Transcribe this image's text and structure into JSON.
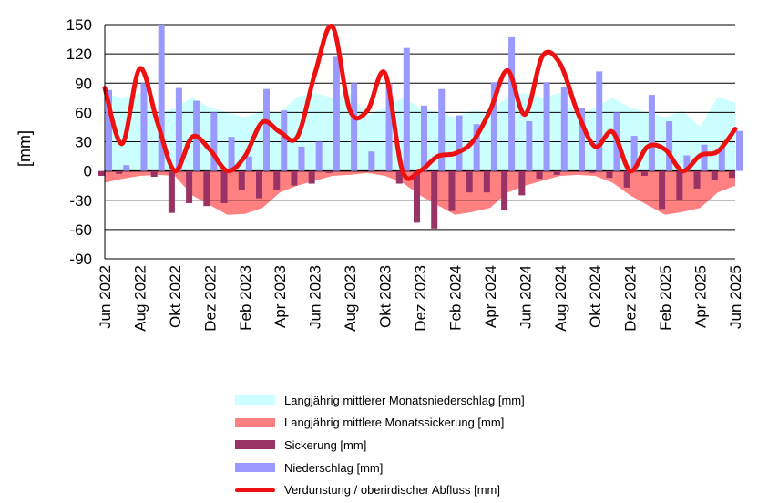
{
  "chart_data": {
    "type": "bar",
    "title": "",
    "xlabel": "",
    "ylabel": "[mm]",
    "ylim": [
      -90,
      150
    ],
    "yticks": [
      150,
      120,
      90,
      60,
      30,
      0,
      -30,
      -60,
      -90
    ],
    "grid": true,
    "categories": [
      "Jun 2022",
      "Jul 2022",
      "Aug 2022",
      "Sep 2022",
      "Okt 2022",
      "Nov 2022",
      "Dez 2022",
      "Jan 2023",
      "Feb 2023",
      "Mrz 2023",
      "Apr 2023",
      "Mai 2023",
      "Jun 2023",
      "Jul 2023",
      "Aug 2023",
      "Sep 2023",
      "Okt 2023",
      "Nov 2023",
      "Dez 2023",
      "Jan 2024",
      "Feb 2024",
      "Mrz 2024",
      "Apr 2024",
      "Mai 2024",
      "Jun 2024",
      "Jul 2024",
      "Aug 2024",
      "Sep 2024",
      "Okt 2024",
      "Nov 2024",
      "Dez 2024",
      "Jan 2025",
      "Feb 2025",
      "Mrz 2025",
      "Apr 2025",
      "Mai 2025",
      "Jun 2025"
    ],
    "xtick_labels": [
      "Jun 2022",
      "Aug 2022",
      "Okt 2022",
      "Dez 2022",
      "Feb 2023",
      "Apr 2023",
      "Jun 2023",
      "Aug 2023",
      "Okt 2023",
      "Dez 2023",
      "Feb 2024",
      "Apr 2024",
      "Jun 2024",
      "Aug 2024",
      "Okt 2024",
      "Dez 2024",
      "Feb 2025",
      "Apr 2025",
      "Jun 2025"
    ],
    "series": [
      {
        "name": "Langjährig mittlerer Monatsniederschlag [mm]",
        "kind": "area",
        "color": "#ccffff",
        "values": [
          80,
          75,
          80,
          57,
          65,
          75,
          65,
          60,
          55,
          62,
          60,
          76,
          80,
          75,
          80,
          57,
          65,
          75,
          65,
          60,
          55,
          62,
          60,
          76,
          80,
          75,
          80,
          57,
          65,
          75,
          65,
          60,
          55,
          62,
          45,
          76,
          70
        ]
      },
      {
        "name": "Langjährig mittlere Monatssickerung [mm]",
        "kind": "area",
        "color": "#ff8080",
        "values": [
          -12,
          -8,
          -5,
          -4,
          -5,
          -25,
          -35,
          -45,
          -44,
          -38,
          -22,
          -15,
          -10,
          -5,
          -4,
          -2,
          -5,
          -12,
          -25,
          -35,
          -45,
          -42,
          -38,
          -22,
          -15,
          -10,
          -5,
          -4,
          -5,
          -12,
          -25,
          -35,
          -45,
          -42,
          -38,
          -22,
          -15
        ]
      },
      {
        "name": "Sickerung [mm]",
        "kind": "bar",
        "color": "#993366",
        "values": [
          -5,
          -3,
          0,
          -6,
          -43,
          -33,
          -36,
          -33,
          -20,
          -28,
          -19,
          -15,
          -13,
          -2,
          0,
          0,
          -1,
          -13,
          -53,
          -59,
          -41,
          -22,
          -22,
          -40,
          -25,
          -8,
          -4,
          0,
          -2,
          -7,
          -17,
          -5,
          -39,
          -30,
          -18,
          -9,
          -7
        ]
      },
      {
        "name": "Niederschlag [mm]",
        "kind": "bar",
        "color": "#9999ff",
        "values": [
          83,
          6,
          90,
          150,
          85,
          72,
          60,
          35,
          15,
          84,
          62,
          25,
          30,
          117,
          90,
          20,
          90,
          126,
          67,
          84,
          57,
          48,
          91,
          137,
          51,
          91,
          86,
          65,
          102,
          60,
          36,
          78,
          51,
          16,
          27,
          24,
          41
        ]
      },
      {
        "name": "Verdunstung / oberirdischer Abfluss [mm]",
        "kind": "line",
        "color": "#ee1111",
        "values": [
          85,
          28,
          105,
          50,
          0,
          35,
          22,
          0,
          15,
          50,
          40,
          35,
          100,
          148,
          62,
          62,
          100,
          0,
          0,
          15,
          18,
          30,
          62,
          103,
          58,
          118,
          110,
          60,
          25,
          40,
          0,
          25,
          22,
          0,
          16,
          20,
          43
        ]
      }
    ],
    "legend_position": "bottom"
  },
  "legend": {
    "items": [
      {
        "label": "Langjährig mittlerer Monatsniederschlag [mm]",
        "color": "#ccffff",
        "kind": "area"
      },
      {
        "label": "Langjährig mittlere Monatssickerung [mm]",
        "color": "#ff8080",
        "kind": "area"
      },
      {
        "label": "Sickerung [mm]",
        "color": "#993366",
        "kind": "bar"
      },
      {
        "label": "Niederschlag [mm]",
        "color": "#9999ff",
        "kind": "bar"
      },
      {
        "label": "Verdunstung / oberirdischer Abfluss [mm]",
        "color": "#ee1111",
        "kind": "line"
      }
    ]
  }
}
